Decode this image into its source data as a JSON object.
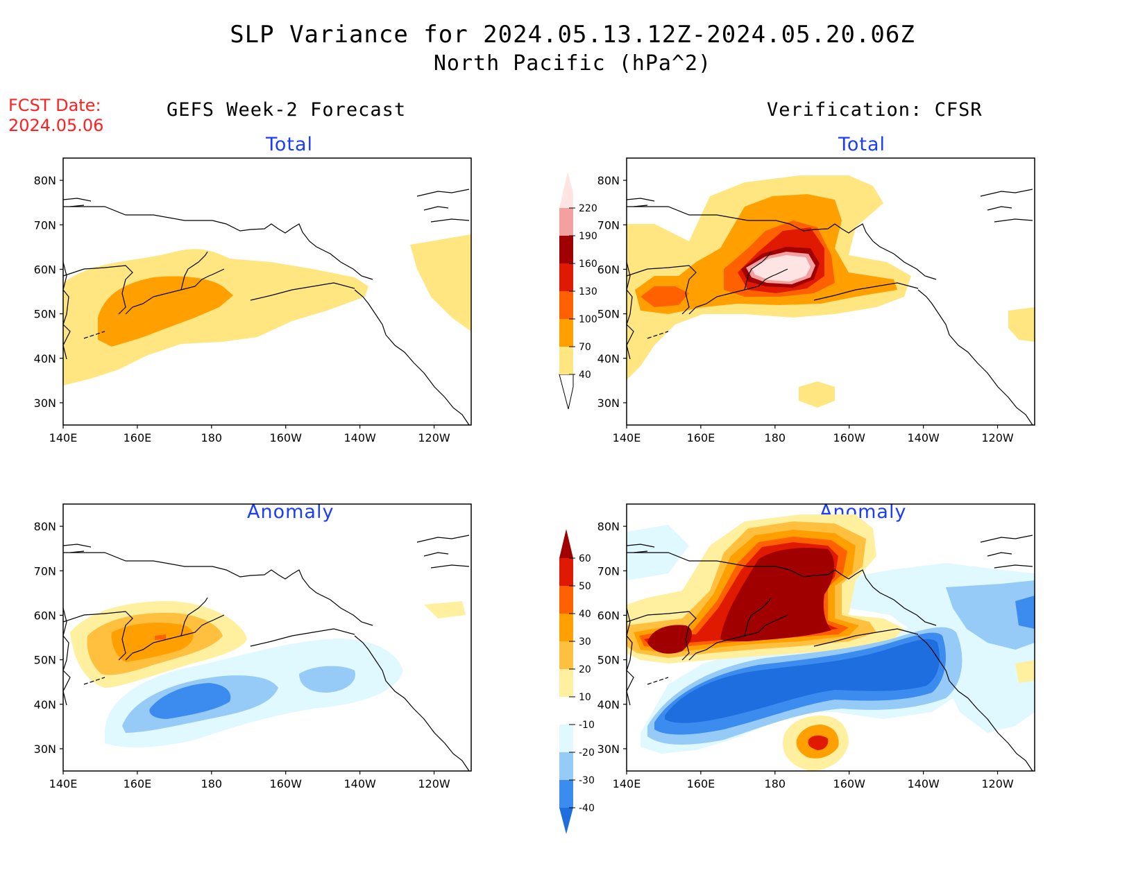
{
  "title_line1": "SLP Variance for 2024.05.13.12Z-2024.05.20.06Z",
  "title_line2": "North Pacific (hPa^2)",
  "fcst_date_label": "FCST Date:",
  "fcst_date_value": "2024.05.06",
  "left_column_title": "GEFS Week-2 Forecast",
  "right_column_title": "Verification: CFSR",
  "panel_titles": {
    "top_left": "Total",
    "top_right": "Total",
    "bottom_left": "Anomaly",
    "bottom_right": "Anomaly"
  },
  "lat_labels": [
    "80N",
    "70N",
    "60N",
    "50N",
    "40N",
    "30N"
  ],
  "lat_values": [
    80,
    70,
    60,
    50,
    40,
    30
  ],
  "lon_labels": [
    "140E",
    "160E",
    "180",
    "160W",
    "140W",
    "120W"
  ],
  "lon_values": [
    140,
    160,
    180,
    200,
    220,
    240
  ],
  "map_extent": {
    "lon_min": 140,
    "lon_max": 250,
    "lat_min": 25,
    "lat_max": 85
  },
  "colorbar_total": {
    "levels": [
      "40",
      "70",
      "100",
      "130",
      "160",
      "190",
      "220"
    ],
    "colors": [
      "#ffe680",
      "#ffa000",
      "#ff6000",
      "#e01a00",
      "#a00000",
      "#f4a0a0",
      "#ffe4e4"
    ]
  },
  "colorbar_anomaly": {
    "levels": [
      "-40",
      "-30",
      "-20",
      "-10",
      "10",
      "20",
      "30",
      "40",
      "50",
      "60"
    ],
    "colors": [
      "#1e6ee0",
      "#3c8cf0",
      "#96cbf8",
      "#e0f8ff",
      "#ffffff",
      "#fff0a0",
      "#ffc040",
      "#ffa000",
      "#ff6000",
      "#e01a00",
      "#a00000"
    ]
  },
  "chart_data": [
    {
      "type": "heatmap",
      "panel": "GEFS Week-2 Forecast - Total",
      "units": "hPa^2",
      "regions": [
        {
          "level": "40-70",
          "area": "North Pacific band 35N-62N, 140E-140W; NE Pacific off western Canada 45N-65N"
        },
        {
          "level": "70-100",
          "area": "centered ~52N 165E, 45N-57N, 150E-175W"
        }
      ]
    },
    {
      "type": "heatmap",
      "panel": "Verification: CFSR - Total",
      "units": "hPa^2",
      "regions": [
        {
          "level": "40-70",
          "area": "broad 45N-80N, 140E-150W; patch ~28N 170W"
        },
        {
          "level": "70-130",
          "area": "45N-78N, 150E-165W"
        },
        {
          "level": "130-160",
          "area": "52N-70N, 170E-170W"
        },
        {
          "level": "160-190",
          "area": "55N-65N, 175E-172W"
        },
        {
          "level": ">220",
          "area": "peak ~60N 178W"
        }
      ]
    },
    {
      "type": "heatmap",
      "panel": "GEFS Week-2 Forecast - Anomaly",
      "units": "hPa^2",
      "regions": [
        {
          "level": "10-40",
          "area": "positive center ~55N 160E, 45N-63N"
        },
        {
          "level": "-10 to -40",
          "area": "negative center ~40N 175E, secondary ~45N 148W"
        }
      ]
    },
    {
      "type": "heatmap",
      "panel": "Verification: CFSR - Anomaly",
      "units": "hPa^2",
      "regions": [
        {
          "level": ">60",
          "area": "50N-77N, 160E-165W; ~55N 152E"
        },
        {
          "level": "< -40",
          "area": "band 35N-52N, 145E-135W"
        },
        {
          "level": ">40",
          "area": "~32N 170W"
        },
        {
          "level": "-10 to -40",
          "area": "NE Pacific 45N-65N, 130W-110W"
        }
      ]
    }
  ]
}
